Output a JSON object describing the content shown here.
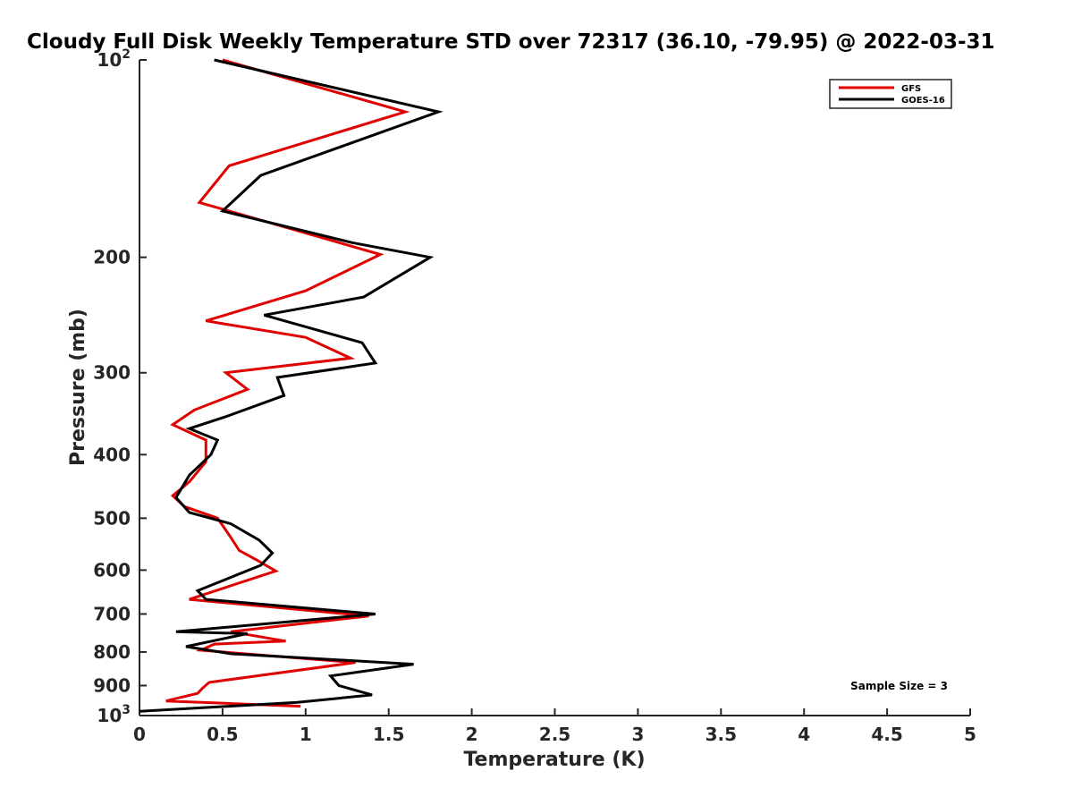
{
  "chart_data": {
    "type": "line",
    "title": "Cloudy Full Disk Weekly Temperature STD over 72317 (36.10, -79.95) @ 2022-03-31",
    "xlabel": "Temperature (K)",
    "ylabel": "Pressure (mb)",
    "xlim": [
      0,
      5
    ],
    "ylim": [
      1000,
      100
    ],
    "y_scale": "log",
    "x_ticks": [
      0,
      0.5,
      1,
      1.5,
      2,
      2.5,
      3,
      3.5,
      4,
      4.5,
      5
    ],
    "x_tick_labels": [
      "0",
      "0.5",
      "1",
      "1.5",
      "2",
      "2.5",
      "3",
      "3.5",
      "4",
      "4.5",
      "5"
    ],
    "y_ticks": [
      100,
      200,
      300,
      400,
      500,
      600,
      700,
      800,
      900,
      1000
    ],
    "y_tick_labels": [
      "10^2",
      "200",
      "300",
      "400",
      "500",
      "600",
      "700",
      "800",
      "900",
      "10^3"
    ],
    "grid": false,
    "legend": {
      "position": "top-right",
      "entries": [
        "GFS",
        "GOES-16"
      ]
    },
    "annotation": "Sample Size = 3",
    "series": [
      {
        "name": "GFS",
        "color": "#e00000",
        "points": [
          [
            0.5,
            100
          ],
          [
            1.6,
            120
          ],
          [
            0.54,
            145
          ],
          [
            0.36,
            165
          ],
          [
            1.45,
            198
          ],
          [
            1.0,
            225
          ],
          [
            0.4,
            250
          ],
          [
            1.0,
            265
          ],
          [
            1.27,
            285
          ],
          [
            0.52,
            300
          ],
          [
            0.65,
            318
          ],
          [
            0.33,
            342
          ],
          [
            0.2,
            360
          ],
          [
            0.4,
            380
          ],
          [
            0.4,
            410
          ],
          [
            0.3,
            440
          ],
          [
            0.2,
            462
          ],
          [
            0.27,
            480
          ],
          [
            0.47,
            500
          ],
          [
            0.55,
            535
          ],
          [
            0.6,
            560
          ],
          [
            0.7,
            578
          ],
          [
            0.82,
            602
          ],
          [
            0.3,
            665
          ],
          [
            1.38,
            705
          ],
          [
            0.55,
            745
          ],
          [
            0.88,
            770
          ],
          [
            0.45,
            778
          ],
          [
            0.37,
            795
          ],
          [
            1.3,
            830
          ],
          [
            0.42,
            890
          ],
          [
            0.38,
            908
          ],
          [
            0.35,
            925
          ],
          [
            0.16,
            950
          ],
          [
            0.97,
            968
          ]
        ]
      },
      {
        "name": "GOES-16",
        "color": "#000000",
        "points": [
          [
            0.45,
            100
          ],
          [
            1.8,
            120
          ],
          [
            0.73,
            150
          ],
          [
            0.5,
            170
          ],
          [
            1.28,
            190
          ],
          [
            1.75,
            200
          ],
          [
            1.35,
            230
          ],
          [
            0.75,
            245
          ],
          [
            1.34,
            270
          ],
          [
            1.42,
            290
          ],
          [
            0.83,
            305
          ],
          [
            0.87,
            325
          ],
          [
            0.52,
            350
          ],
          [
            0.3,
            365
          ],
          [
            0.47,
            380
          ],
          [
            0.43,
            400
          ],
          [
            0.3,
            430
          ],
          [
            0.22,
            465
          ],
          [
            0.3,
            490
          ],
          [
            0.55,
            510
          ],
          [
            0.72,
            540
          ],
          [
            0.8,
            565
          ],
          [
            0.73,
            590
          ],
          [
            0.35,
            645
          ],
          [
            0.4,
            665
          ],
          [
            1.42,
            700
          ],
          [
            0.22,
            745
          ],
          [
            0.65,
            750
          ],
          [
            0.28,
            785
          ],
          [
            0.55,
            805
          ],
          [
            1.65,
            835
          ],
          [
            1.15,
            870
          ],
          [
            1.2,
            900
          ],
          [
            1.4,
            930
          ],
          [
            0.95,
            955
          ],
          [
            0,
            985
          ]
        ]
      }
    ]
  }
}
